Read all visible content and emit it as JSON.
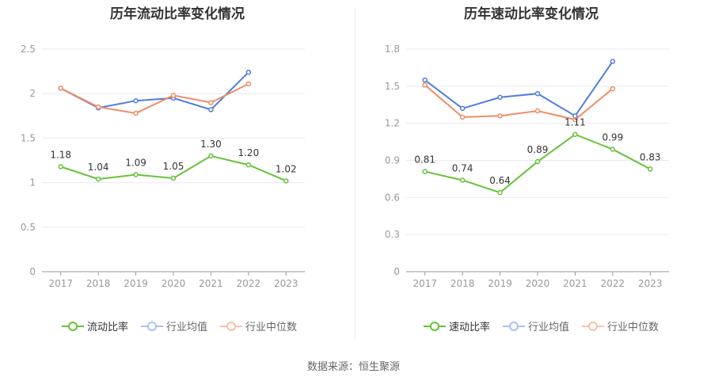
{
  "colors": {
    "primary": "#67c23a",
    "avg": "#4f7de0",
    "median": "#f08c64",
    "grid": "#e8e8f4"
  },
  "source": "数据来源：恒生聚源",
  "chart_data": [
    {
      "type": "line",
      "title": "历年流动比率变化情况",
      "categories": [
        "2017",
        "2018",
        "2019",
        "2020",
        "2021",
        "2022",
        "2023"
      ],
      "ylim": [
        0,
        2.5
      ],
      "yticks": [
        "0",
        "0.5",
        "1",
        "1.5",
        "2",
        "2.5"
      ],
      "legend": [
        "流动比率",
        "行业均值",
        "行业中位数"
      ],
      "series": [
        {
          "name": "流动比率",
          "values": [
            1.18,
            1.04,
            1.09,
            1.05,
            1.3,
            1.2,
            1.02
          ],
          "labels": [
            "1.18",
            "1.04",
            "1.09",
            "1.05",
            "1.30",
            "1.20",
            "1.02"
          ]
        },
        {
          "name": "行业均值",
          "values": [
            2.06,
            1.84,
            1.92,
            1.95,
            1.82,
            2.24,
            null
          ]
        },
        {
          "name": "行业中位数",
          "values": [
            2.06,
            1.85,
            1.78,
            1.98,
            1.9,
            2.11,
            null
          ]
        }
      ]
    },
    {
      "type": "line",
      "title": "历年速动比率变化情况",
      "categories": [
        "2017",
        "2018",
        "2019",
        "2020",
        "2021",
        "2022",
        "2023"
      ],
      "ylim": [
        0,
        1.8
      ],
      "yticks": [
        "0",
        "0.3",
        "0.6",
        "0.9",
        "1.2",
        "1.5",
        "1.8"
      ],
      "legend": [
        "速动比率",
        "行业均值",
        "行业中位数"
      ],
      "series": [
        {
          "name": "速动比率",
          "values": [
            0.81,
            0.74,
            0.64,
            0.89,
            1.11,
            0.99,
            0.83
          ],
          "labels": [
            "0.81",
            "0.74",
            "0.64",
            "0.89",
            "1.11",
            "0.99",
            "0.83"
          ]
        },
        {
          "name": "行业均值",
          "values": [
            1.55,
            1.32,
            1.41,
            1.44,
            1.26,
            1.7,
            null
          ]
        },
        {
          "name": "行业中位数",
          "values": [
            1.51,
            1.25,
            1.26,
            1.3,
            1.23,
            1.48,
            null
          ]
        }
      ]
    }
  ]
}
